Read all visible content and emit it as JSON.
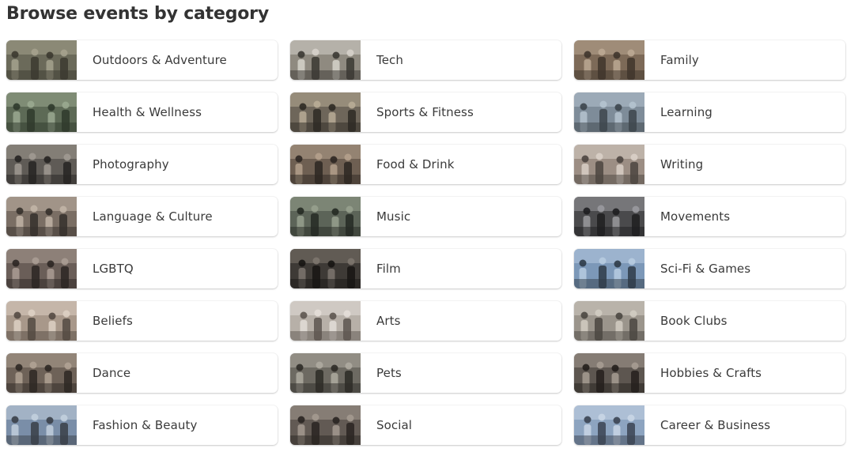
{
  "header": {
    "title": "Browse events by category"
  },
  "categories": [
    {
      "label": "Outdoors & Adventure",
      "icon": "outdoors-photo",
      "tone": [
        "#6b6a5a",
        "#3c3a30",
        "#a5a28e"
      ]
    },
    {
      "label": "Tech",
      "icon": "tech-photo",
      "tone": [
        "#8f8a80",
        "#3b3833",
        "#d6d2ca"
      ]
    },
    {
      "label": "Family",
      "icon": "family-photo",
      "tone": [
        "#7d6a58",
        "#3f352c",
        "#bba893"
      ]
    },
    {
      "label": "Health & Wellness",
      "icon": "health-photo",
      "tone": [
        "#5d6a56",
        "#2f3a2c",
        "#9aa890"
      ]
    },
    {
      "label": "Sports & Fitness",
      "icon": "sports-photo",
      "tone": [
        "#6e665a",
        "#2e2a24",
        "#b8ac96"
      ]
    },
    {
      "label": "Learning",
      "icon": "learning-photo",
      "tone": [
        "#7e8c99",
        "#3d454c",
        "#b5c3cf"
      ]
    },
    {
      "label": "Photography",
      "icon": "photography-photo",
      "tone": [
        "#5f5b56",
        "#262422",
        "#a09a92"
      ]
    },
    {
      "label": "Food & Drink",
      "icon": "food-photo",
      "tone": [
        "#6e5f52",
        "#2d2722",
        "#b4a08c"
      ]
    },
    {
      "label": "Writing",
      "icon": "writing-photo",
      "tone": [
        "#9c8e84",
        "#4c4540",
        "#d9cfc6"
      ]
    },
    {
      "label": "Language & Culture",
      "icon": "language-photo",
      "tone": [
        "#7a6e64",
        "#35302b",
        "#c1b4a6"
      ]
    },
    {
      "label": "Music",
      "icon": "music-photo",
      "tone": [
        "#5c6458",
        "#252a24",
        "#97a08e"
      ]
    },
    {
      "label": "Movements",
      "icon": "movements-photo",
      "tone": [
        "#4a4a4c",
        "#1e1e20",
        "#9a9a9e"
      ]
    },
    {
      "label": "LGBTQ",
      "icon": "lgbtq-photo",
      "tone": [
        "#6a5e58",
        "#2c2623",
        "#aa9c94"
      ]
    },
    {
      "label": "Film",
      "icon": "film-photo",
      "tone": [
        "#3e3a36",
        "#171513",
        "#7d766e"
      ]
    },
    {
      "label": "Sci-Fi & Games",
      "icon": "scifi-photo",
      "tone": [
        "#7c98b8",
        "#2f3b48",
        "#b7cbe0"
      ]
    },
    {
      "label": "Beliefs",
      "icon": "beliefs-photo",
      "tone": [
        "#a8988a",
        "#544a42",
        "#ddd0c3"
      ]
    },
    {
      "label": "Arts",
      "icon": "arts-photo",
      "tone": [
        "#b7b0a8",
        "#5d5650",
        "#e3ded8"
      ]
    },
    {
      "label": "Book Clubs",
      "icon": "bookclubs-photo",
      "tone": [
        "#9b958c",
        "#4b4741",
        "#d2ccc2"
      ]
    },
    {
      "label": "Dance",
      "icon": "dance-photo",
      "tone": [
        "#6e6258",
        "#2e2823",
        "#b0a293"
      ]
    },
    {
      "label": "Pets",
      "icon": "pets-photo",
      "tone": [
        "#6d6a62",
        "#2d2b27",
        "#aeaaa0"
      ]
    },
    {
      "label": "Hobbies & Crafts",
      "icon": "hobbies-photo",
      "tone": [
        "#5d5650",
        "#241f1c",
        "#a69c92"
      ]
    },
    {
      "label": "Fashion & Beauty",
      "icon": "fashion-photo",
      "tone": [
        "#7a8ea8",
        "#3a3f48",
        "#c2cfdd"
      ]
    },
    {
      "label": "Social",
      "icon": "social-photo",
      "tone": [
        "#625a54",
        "#2a2522",
        "#a49a90"
      ]
    },
    {
      "label": "Career & Business",
      "icon": "career-photo",
      "tone": [
        "#8da4c0",
        "#3b4452",
        "#c9d6e5"
      ]
    }
  ]
}
